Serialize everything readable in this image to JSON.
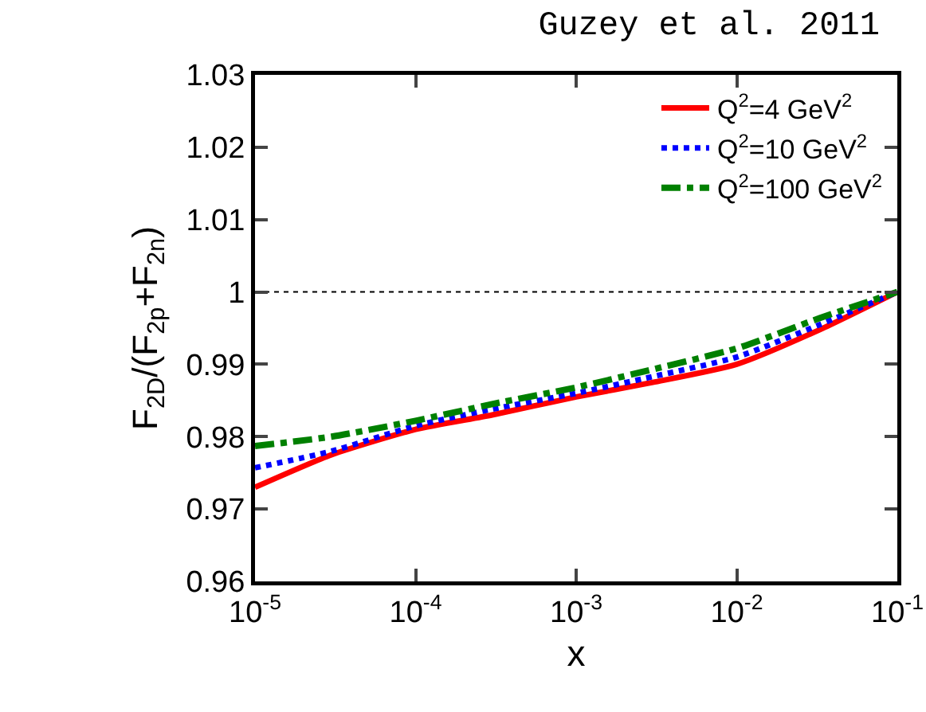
{
  "chart_data": {
    "type": "line",
    "title": "Guzey et al. 2011",
    "xlabel": "x",
    "ylabel": "F$_{2D}$/(F$_{2p}$+F$_{2n}$)",
    "log": "x",
    "x": [
      1e-05,
      3e-05,
      0.0001,
      0.0003,
      0.001,
      0.003,
      0.01,
      0.033,
      0.1
    ],
    "xlim": [
      1e-05,
      0.1
    ],
    "xticks": [
      {
        "value": 1e-05,
        "label": "10$^{-5}$"
      },
      {
        "value": 0.0001,
        "label": "10$^{-4}$"
      },
      {
        "value": 0.001,
        "label": "10$^{-3}$"
      },
      {
        "value": 0.01,
        "label": "10$^{-2}$"
      },
      {
        "value": 0.1,
        "label": "10$^{-1}$"
      }
    ],
    "ylim": [
      0.96,
      1.03
    ],
    "yticks": [
      0.96,
      0.97,
      0.98,
      0.99,
      {
        "value": 1,
        "label": "1"
      },
      1.01,
      1.02,
      1.03
    ],
    "series": [
      {
        "name": "Q$^{2}$=4 GeV$^{2}$",
        "color": "#ff0000",
        "line_style": "solid",
        "values": [
          0.973,
          0.9775,
          0.981,
          0.983,
          0.9855,
          0.9875,
          0.99,
          0.9948,
          1.0
        ]
      },
      {
        "name": "Q$^{2}$=10 GeV$^{2}$",
        "color": "#0000ff",
        "line_style": "dotted",
        "values": [
          0.9757,
          0.978,
          0.9815,
          0.9838,
          0.986,
          0.9883,
          0.991,
          0.9955,
          1.0
        ]
      },
      {
        "name": "Q$^{2}$=100 GeV$^{2}$",
        "color": "#008000",
        "line_style": "dashdot",
        "values": [
          0.9787,
          0.98,
          0.9822,
          0.9845,
          0.9868,
          0.9893,
          0.9922,
          0.9964,
          1.0
        ]
      }
    ],
    "ref_lines": [
      {
        "axis": "y",
        "value": 1,
        "color": "#000000",
        "line_style": "dotted"
      }
    ],
    "grid": false,
    "legend": "top right",
    "marker": "none"
  }
}
